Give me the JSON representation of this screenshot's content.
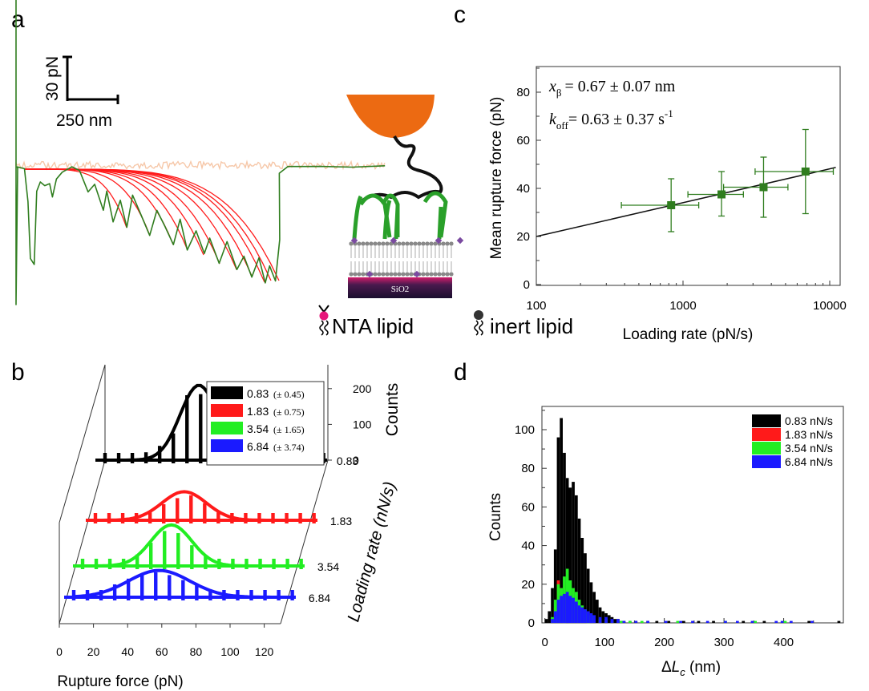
{
  "panel_labels": {
    "a": "a",
    "b": "b",
    "c": "c",
    "d": "d"
  },
  "colors": {
    "green": "#2f7d1e",
    "red": "#ff1a1a",
    "peach": "#f6c7a8",
    "orange": "#ec6a12",
    "black": "#000000",
    "lime": "#22ee22",
    "blue": "#1a1aff",
    "lipid_pink": "#e6177a",
    "substrate": "#3a1c4a"
  },
  "panel_a": {
    "scale_force": "30 pN",
    "scale_distance": "250 nm",
    "substrate_label": "SiO2",
    "legend_nta": "NTA lipid",
    "legend_inert": "inert lipid"
  },
  "panel_b": {
    "xlabel": "Rupture force (pN)",
    "zlabel": "Counts",
    "ylabel": "Loading rate (nN/s)",
    "x_ticks": [
      "0",
      "20",
      "40",
      "60",
      "80",
      "100",
      "120"
    ],
    "z_ticks": [
      "0",
      "100",
      "200"
    ],
    "legend": [
      {
        "value": "0.83",
        "err": "(± 0.45)",
        "color": "#000000"
      },
      {
        "value": "1.83",
        "err": "(± 0.75)",
        "color": "#ff1a1a"
      },
      {
        "value": "3.54",
        "err": "(± 1.65)",
        "color": "#22ee22"
      },
      {
        "value": "6.84",
        "err": "(± 3.74)",
        "color": "#1a1aff"
      }
    ]
  },
  "panel_c": {
    "ann_x_beta": "= 0.67 ± 0.07 nm",
    "ann_k_off": "= 0.63 ± 0.37 s",
    "x_ticks": [
      "100",
      "1000",
      "10000"
    ],
    "y_ticks": [
      "0",
      "20",
      "40",
      "60",
      "80"
    ]
  },
  "panel_d": {
    "ylabel": "Counts",
    "x_ticks": [
      "0",
      "100",
      "200",
      "300",
      "400"
    ],
    "y_ticks": [
      "0",
      "20",
      "40",
      "60",
      "80",
      "100"
    ],
    "legend": [
      "0.83 nN/s",
      "1.83 nN/s",
      "3.54 nN/s",
      "6.84 nN/s"
    ]
  },
  "chart_data": [
    {
      "panel": "b",
      "type": "bar",
      "xlabel": "Rupture force (pN)",
      "ylabel": "Loading rate (nN/s)",
      "zlabel": "Counts",
      "xlim": [
        0,
        130
      ],
      "zlim": [
        0,
        250
      ],
      "bin_width": 8,
      "x": [
        0,
        8,
        16,
        24,
        32,
        40,
        48,
        56,
        64,
        72,
        80,
        88,
        96,
        104,
        112,
        120,
        128
      ],
      "series": [
        {
          "name": "0.83",
          "fit": {
            "mu": 55,
            "sigma": 11,
            "amp": 210
          },
          "values": [
            0,
            0,
            0,
            22,
            40,
            75,
            182,
            185,
            110,
            58,
            14,
            4,
            2,
            1,
            1,
            1,
            0
          ]
        },
        {
          "name": "1.83",
          "fit": {
            "mu": 52,
            "sigma": 13,
            "amp": 80
          },
          "values": [
            0,
            0,
            2,
            8,
            22,
            45,
            62,
            70,
            48,
            22,
            7,
            3,
            1,
            1,
            0,
            0,
            0
          ]
        },
        {
          "name": "3.54",
          "fit": {
            "mu": 52,
            "sigma": 12,
            "amp": 115
          },
          "values": [
            0,
            0,
            2,
            12,
            32,
            65,
            98,
            92,
            58,
            28,
            8,
            3,
            2,
            1,
            1,
            0,
            0
          ]
        },
        {
          "name": "6.84",
          "fit": {
            "mu": 50,
            "sigma": 18,
            "amp": 75
          },
          "values": [
            2,
            7,
            18,
            36,
            52,
            62,
            70,
            62,
            48,
            35,
            20,
            12,
            6,
            3,
            2,
            1,
            0
          ]
        }
      ]
    },
    {
      "panel": "c",
      "type": "scatter",
      "xlabel": "Loading rate (pN/s)",
      "ylabel": "Mean rupture force (pN)",
      "xscale": "log",
      "xlim": [
        100,
        11000
      ],
      "ylim": [
        0,
        90
      ],
      "points": [
        {
          "x": 830,
          "y": 33,
          "xerr": [
            380,
            1280
          ],
          "yerr": [
            22,
            44
          ]
        },
        {
          "x": 1830,
          "y": 37.5,
          "xerr": [
            1080,
            2580
          ],
          "yerr": [
            28.5,
            47
          ]
        },
        {
          "x": 3540,
          "y": 40.5,
          "xerr": [
            1890,
            5190
          ],
          "yerr": [
            28,
            53
          ]
        },
        {
          "x": 6840,
          "y": 47,
          "xerr": [
            3100,
            10580
          ],
          "yerr": [
            29.5,
            64.5
          ]
        }
      ],
      "fit_line": {
        "x": [
          100,
          11000
        ],
        "y": [
          20,
          48.7
        ]
      }
    },
    {
      "panel": "d",
      "type": "bar",
      "xlabel": "ΔLc (nm)",
      "ylabel": "Counts",
      "xlim": [
        -5,
        500
      ],
      "ylim": [
        0,
        112
      ],
      "bin_width": 5,
      "legend_placement": "top-right",
      "series": [
        {
          "name": "0.83 nN/s",
          "x": [
            0,
            5,
            10,
            15,
            20,
            25,
            30,
            35,
            40,
            45,
            50,
            55,
            60,
            65,
            70,
            75,
            80,
            85,
            90,
            95,
            100,
            105,
            110,
            115,
            120,
            125,
            130,
            140,
            150,
            170,
            185,
            205,
            230,
            255,
            280,
            330,
            365,
            440,
            490
          ],
          "values": [
            2,
            6,
            18,
            38,
            96,
            106,
            88,
            75,
            70,
            73,
            66,
            54,
            44,
            36,
            28,
            21,
            16,
            12,
            8,
            6,
            5,
            4,
            3,
            2,
            2,
            1,
            1,
            1,
            1,
            1,
            1,
            1,
            1,
            1,
            1,
            1,
            1,
            1,
            1
          ]
        },
        {
          "name": "1.83 nN/s",
          "x": [
            10,
            15,
            20,
            25,
            30,
            35,
            40,
            45,
            50,
            55,
            60,
            65,
            70,
            80,
            90
          ],
          "values": [
            2,
            8,
            22,
            18,
            14,
            12,
            10,
            12,
            8,
            6,
            4,
            3,
            2,
            1,
            1
          ]
        },
        {
          "name": "3.54 nN/s",
          "x": [
            10,
            15,
            20,
            25,
            30,
            35,
            40,
            45,
            50,
            55,
            60,
            65,
            70,
            75,
            80,
            90,
            100,
            110,
            125,
            140,
            160,
            220,
            300,
            350,
            400
          ],
          "values": [
            3,
            12,
            20,
            18,
            24,
            28,
            22,
            18,
            16,
            12,
            9,
            7,
            5,
            4,
            3,
            2,
            2,
            1,
            1,
            1,
            1,
            1,
            1,
            1,
            1
          ]
        },
        {
          "name": "6.84 nN/s",
          "x": [
            10,
            15,
            20,
            25,
            30,
            35,
            40,
            45,
            50,
            55,
            60,
            65,
            70,
            75,
            80,
            90,
            100,
            110,
            120,
            130,
            150,
            170,
            200,
            225,
            245,
            270,
            300,
            320,
            345,
            385,
            395,
            410,
            445
          ],
          "values": [
            2,
            6,
            12,
            14,
            15,
            16,
            14,
            13,
            11,
            9,
            8,
            7,
            6,
            5,
            4,
            3,
            3,
            2,
            2,
            1,
            1,
            1,
            1,
            1,
            1,
            1,
            1,
            1,
            1,
            1,
            1,
            1,
            1
          ]
        }
      ]
    }
  ]
}
